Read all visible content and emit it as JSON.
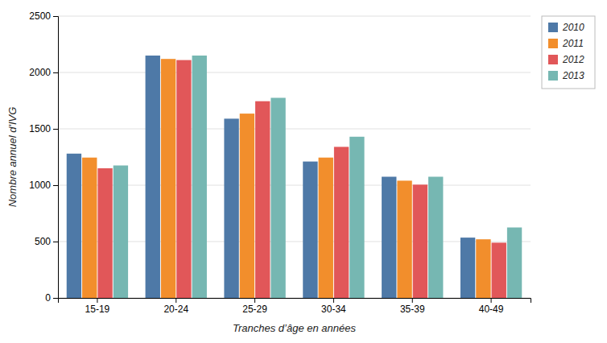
{
  "chart_data": {
    "type": "bar",
    "categories": [
      "15-19",
      "20-24",
      "25-29",
      "30-34",
      "35-39",
      "40-49"
    ],
    "series": [
      {
        "name": "2010",
        "values": [
          1280,
          2150,
          1590,
          1210,
          1075,
          535
        ]
      },
      {
        "name": "2011",
        "values": [
          1245,
          2120,
          1635,
          1245,
          1040,
          520
        ]
      },
      {
        "name": "2012",
        "values": [
          1150,
          2110,
          1745,
          1340,
          1005,
          490
        ]
      },
      {
        "name": "2013",
        "values": [
          1175,
          2150,
          1775,
          1430,
          1075,
          625
        ]
      }
    ],
    "xlabel": "Tranches d’âge en années",
    "ylabel": "Nombre annuel d'IVG",
    "ylim": [
      0,
      2500
    ],
    "yticks": [
      0,
      500,
      1000,
      1500,
      2000,
      2500
    ],
    "grid": true,
    "legend": "upper right"
  }
}
